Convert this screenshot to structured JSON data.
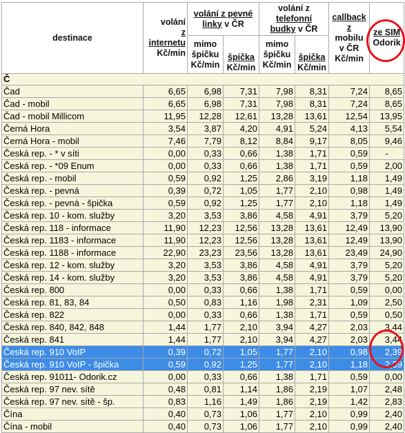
{
  "header": {
    "destinace": "destinace",
    "volani_internet": [
      "volání",
      "z",
      "internetu",
      "Kč/min"
    ],
    "volani_pevne_group": [
      "volání z pevné",
      "linky v ČR"
    ],
    "volani_budky_group": [
      "volání z",
      "telefonní",
      "budky v ČR"
    ],
    "mimo_spicku": [
      "mimo",
      "špičku",
      "Kč/min"
    ],
    "spicka": [
      "špička",
      "Kč/min"
    ],
    "callback": [
      "callback",
      "z",
      "mobilu",
      "v ČR",
      "Kč/min"
    ],
    "sim_odorik": [
      "ze SIM",
      "Odorik"
    ]
  },
  "section_label": "Č",
  "rows": [
    {
      "name": "Čad",
      "v": [
        "6,65",
        "6,98",
        "7,31",
        "7,98",
        "8,31",
        "7,24",
        "8,65"
      ]
    },
    {
      "name": "Čad - mobil",
      "v": [
        "6,65",
        "6,98",
        "7,31",
        "7,98",
        "8,31",
        "7,24",
        "8,65"
      ]
    },
    {
      "name": "Čad - mobil Millicom",
      "v": [
        "11,95",
        "12,28",
        "12,61",
        "13,28",
        "13,61",
        "12,54",
        "13,95"
      ]
    },
    {
      "name": "Černá Hora",
      "v": [
        "3,54",
        "3,87",
        "4,20",
        "4,91",
        "5,24",
        "4,13",
        "5,54"
      ]
    },
    {
      "name": "Černá Hora - mobil",
      "v": [
        "7,46",
        "7,79",
        "8,12",
        "8,84",
        "9,17",
        "8,05",
        "9,46"
      ]
    },
    {
      "name": "Česká rep. - * v síti",
      "v": [
        "0,00",
        "0,33",
        "0,66",
        "1,38",
        "1,71",
        "0,59",
        "-"
      ]
    },
    {
      "name": "Česká rep. - *09 Enum",
      "v": [
        "0,00",
        "0,33",
        "0,66",
        "1,38",
        "1,71",
        "0,59",
        "2,00"
      ]
    },
    {
      "name": "Česká rep. - mobil",
      "v": [
        "0,59",
        "0,92",
        "1,25",
        "2,86",
        "3,19",
        "1,18",
        "1,49"
      ]
    },
    {
      "name": "Česká rep. - pevná",
      "v": [
        "0,39",
        "0,72",
        "1,05",
        "1,77",
        "2,10",
        "0,98",
        "1,49"
      ]
    },
    {
      "name": "Česká rep. - pevná - špička",
      "v": [
        "0,59",
        "0,92",
        "1,25",
        "1,77",
        "2,10",
        "1,18",
        "1,49"
      ]
    },
    {
      "name": "Česká rep. 10 - kom. služby",
      "v": [
        "3,20",
        "3,53",
        "3,86",
        "4,58",
        "4,91",
        "3,79",
        "5,20"
      ]
    },
    {
      "name": "Česká rep. 118 - informace",
      "v": [
        "11,90",
        "12,23",
        "12,56",
        "13,28",
        "13,61",
        "12,49",
        "13,90"
      ]
    },
    {
      "name": "Česká rep. 1183 - informace",
      "v": [
        "11,90",
        "12,23",
        "12,56",
        "13,28",
        "13,61",
        "12,49",
        "13,90"
      ]
    },
    {
      "name": "Česká rep. 1188 - informace",
      "v": [
        "22,90",
        "23,23",
        "23,56",
        "13,28",
        "13,61",
        "23,49",
        "24,90"
      ]
    },
    {
      "name": "Česká rep. 12 - kom. služby",
      "v": [
        "3,20",
        "3,53",
        "3,86",
        "4,58",
        "4,91",
        "3,79",
        "5,20"
      ]
    },
    {
      "name": "Česká rep. 14 - kom. služby",
      "v": [
        "3,20",
        "3,53",
        "3,86",
        "4,58",
        "4,91",
        "3,79",
        "5,20"
      ]
    },
    {
      "name": "Česká rep. 800",
      "v": [
        "0,00",
        "0,33",
        "0,66",
        "1,38",
        "1,71",
        "0,59",
        "0,00"
      ]
    },
    {
      "name": "Česká rep. 81, 83, 84",
      "v": [
        "0,50",
        "0,83",
        "1,16",
        "1,98",
        "2,31",
        "1,09",
        "2,50"
      ]
    },
    {
      "name": "Česká rep. 822",
      "v": [
        "0,00",
        "0,33",
        "0,66",
        "1,38",
        "1,71",
        "0,59",
        "0,50"
      ]
    },
    {
      "name": "Česká rep. 840, 842, 848",
      "v": [
        "1,44",
        "1,77",
        "2,10",
        "3,94",
        "4,27",
        "2,03",
        "3,44"
      ]
    },
    {
      "name": "Česká rep. 841",
      "v": [
        "1,44",
        "1,77",
        "2,10",
        "3,94",
        "4,27",
        "2,03",
        "3,44"
      ]
    },
    {
      "name": "Česká rep. 910 VoIP",
      "v": [
        "0,39",
        "0,72",
        "1,05",
        "1,77",
        "2,10",
        "0,98",
        "2,39"
      ],
      "highlight": true
    },
    {
      "name": "Česká rep. 910 VoIP - špička",
      "v": [
        "0,59",
        "0,92",
        "1,25",
        "1,77",
        "2,10",
        "1,18",
        "2,39"
      ],
      "highlight": true
    },
    {
      "name": "Česká rep. 91011- Odorik.cz",
      "v": [
        "0,00",
        "0,33",
        "0,66",
        "1,38",
        "1,71",
        "0,59",
        "0,00"
      ]
    },
    {
      "name": "Česká rep. 97 nev. sítě",
      "v": [
        "0,48",
        "0,81",
        "1,14",
        "1,86",
        "2,19",
        "1,07",
        "2,48"
      ]
    },
    {
      "name": "Česká rep. 97 nev. sítě - šp.",
      "v": [
        "0,83",
        "1,16",
        "1,49",
        "1,86",
        "2,19",
        "1,42",
        "2,83"
      ]
    },
    {
      "name": "Čína",
      "v": [
        "0,40",
        "0,73",
        "1,06",
        "1,77",
        "2,10",
        "0,99",
        "2,40"
      ]
    },
    {
      "name": "Čína - mobil",
      "v": [
        "0,40",
        "0,73",
        "1,06",
        "1,77",
        "2,10",
        "0,99",
        "2,40"
      ]
    }
  ],
  "colors": {
    "row_bg": "#f6f6dc",
    "highlight_bg": "#3d8ce6",
    "circle": "#e8101a"
  }
}
